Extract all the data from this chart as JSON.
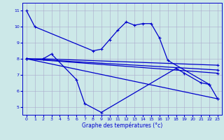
{
  "xlabel": "Graphe des températures (°c)",
  "bg_color": "#cce8e8",
  "line_color": "#0000cc",
  "grid_color": "#aaaacc",
  "ylim": [
    4.5,
    11.5
  ],
  "xlim": [
    -0.5,
    23.5
  ],
  "yticks": [
    5,
    6,
    7,
    8,
    9,
    10,
    11
  ],
  "xticks": [
    0,
    1,
    2,
    3,
    4,
    5,
    6,
    7,
    8,
    9,
    10,
    11,
    12,
    13,
    14,
    15,
    16,
    17,
    18,
    19,
    20,
    21,
    22,
    23
  ],
  "line0_x": [
    0,
    1,
    8,
    9,
    10,
    11,
    12,
    13,
    14,
    15,
    16,
    17,
    22,
    23
  ],
  "line0_y": [
    11.0,
    10.0,
    8.5,
    8.6,
    9.2,
    9.8,
    10.3,
    10.1,
    10.2,
    10.2,
    9.3,
    7.9,
    6.4,
    5.5
  ],
  "line1_x": [
    2,
    3,
    6,
    7,
    9,
    18,
    19,
    21,
    22
  ],
  "line1_y": [
    8.0,
    8.3,
    6.7,
    5.2,
    4.65,
    7.4,
    7.1,
    6.5,
    6.4
  ],
  "line2_x": [
    0,
    2,
    23
  ],
  "line2_y": [
    8.0,
    8.0,
    7.6
  ],
  "line3_x": [
    0,
    23
  ],
  "line3_y": [
    8.0,
    7.3
  ],
  "line4_x": [
    0,
    23
  ],
  "line4_y": [
    8.0,
    7.1
  ],
  "line5_x": [
    0,
    23
  ],
  "line5_y": [
    8.0,
    5.5
  ]
}
